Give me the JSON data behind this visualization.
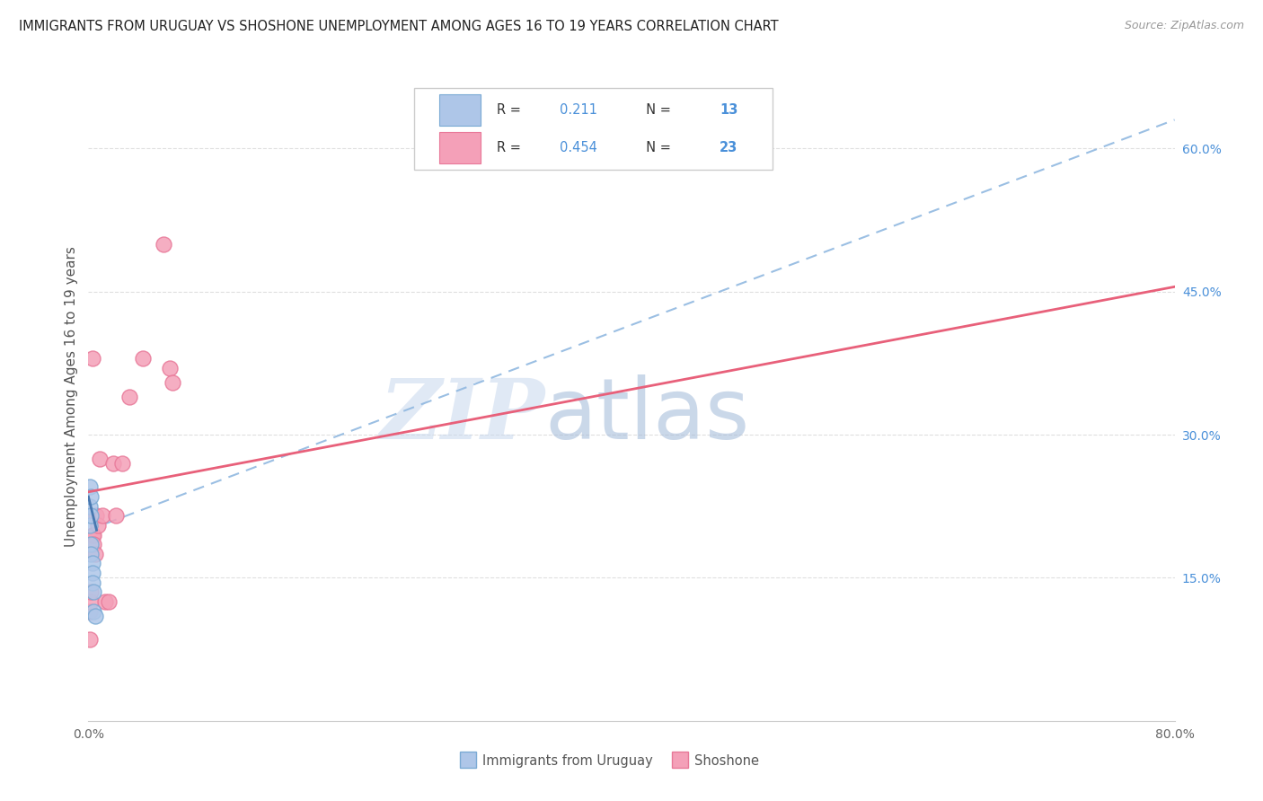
{
  "title": "IMMIGRANTS FROM URUGUAY VS SHOSHONE UNEMPLOYMENT AMONG AGES 16 TO 19 YEARS CORRELATION CHART",
  "source": "Source: ZipAtlas.com",
  "ylabel": "Unemployment Among Ages 16 to 19 years",
  "xlim": [
    0.0,
    0.8
  ],
  "ylim": [
    0.0,
    0.68
  ],
  "xtick_positions": [
    0.0,
    0.1,
    0.2,
    0.3,
    0.4,
    0.5,
    0.6,
    0.7,
    0.8
  ],
  "xticklabels": [
    "0.0%",
    "",
    "",
    "",
    "",
    "",
    "",
    "",
    "80.0%"
  ],
  "yticks_right": [
    0.15,
    0.3,
    0.45,
    0.6
  ],
  "ytick_right_labels": [
    "15.0%",
    "30.0%",
    "45.0%",
    "60.0%"
  ],
  "legend_label1": "Immigrants from Uruguay",
  "legend_label2": "Shoshone",
  "blue_r": "0.211",
  "blue_n": "13",
  "pink_r": "0.454",
  "pink_n": "23",
  "blue_scatter_x": [
    0.001,
    0.001,
    0.001,
    0.002,
    0.002,
    0.002,
    0.002,
    0.003,
    0.003,
    0.003,
    0.004,
    0.004,
    0.005
  ],
  "blue_scatter_y": [
    0.245,
    0.225,
    0.205,
    0.235,
    0.215,
    0.185,
    0.175,
    0.165,
    0.155,
    0.145,
    0.135,
    0.115,
    0.11
  ],
  "pink_scatter_x": [
    0.001,
    0.001,
    0.002,
    0.002,
    0.003,
    0.003,
    0.004,
    0.004,
    0.005,
    0.006,
    0.007,
    0.008,
    0.01,
    0.012,
    0.015,
    0.018,
    0.02,
    0.025,
    0.03,
    0.04,
    0.055,
    0.06,
    0.062
  ],
  "pink_scatter_y": [
    0.085,
    0.115,
    0.125,
    0.135,
    0.195,
    0.38,
    0.195,
    0.185,
    0.175,
    0.215,
    0.205,
    0.275,
    0.215,
    0.125,
    0.125,
    0.27,
    0.215,
    0.27,
    0.34,
    0.38,
    0.5,
    0.37,
    0.355
  ],
  "blue_color": "#aec6e8",
  "blue_edge_color": "#7aaad4",
  "pink_color": "#f4a0b8",
  "pink_edge_color": "#e87898",
  "blue_line_color": "#4878b0",
  "pink_line_color": "#e8607a",
  "dashed_line_color": "#90b8e0",
  "dashed_line_x0": 0.0,
  "dashed_line_y0": 0.2,
  "dashed_line_x1": 0.8,
  "dashed_line_y1": 0.63,
  "pink_line_x0": 0.0,
  "pink_line_y0": 0.24,
  "pink_line_x1": 0.8,
  "pink_line_y1": 0.455,
  "blue_line_x0": 0.0,
  "blue_line_y0": 0.235,
  "blue_line_x1": 0.006,
  "blue_line_y1": 0.2,
  "watermark_top": "ZIP",
  "watermark_bottom": "atlas",
  "background_color": "#ffffff",
  "grid_color": "#d8d8d8"
}
